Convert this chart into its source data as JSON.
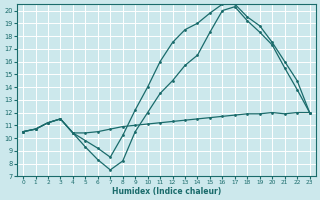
{
  "xlabel": "Humidex (Indice chaleur)",
  "background_color": "#cce8ec",
  "grid_color": "#ffffff",
  "line_color": "#1a6b6b",
  "xlim": [
    -0.5,
    23.5
  ],
  "ylim": [
    7,
    20.5
  ],
  "yticks": [
    7,
    8,
    9,
    10,
    11,
    12,
    13,
    14,
    15,
    16,
    17,
    18,
    19,
    20
  ],
  "xticks": [
    0,
    1,
    2,
    3,
    4,
    5,
    6,
    7,
    8,
    9,
    10,
    11,
    12,
    13,
    14,
    15,
    16,
    17,
    18,
    19,
    20,
    21,
    22,
    23
  ],
  "line1_x": [
    0,
    1,
    2,
    3,
    4,
    5,
    6,
    7,
    8,
    9,
    10,
    11,
    12,
    13,
    14,
    15,
    16,
    17,
    18,
    19,
    20,
    21,
    22,
    23
  ],
  "line1_y": [
    10.5,
    10.7,
    11.2,
    11.5,
    10.4,
    10.4,
    10.5,
    10.7,
    10.9,
    11.0,
    11.1,
    11.2,
    11.3,
    11.4,
    11.5,
    11.6,
    11.7,
    11.8,
    11.9,
    11.9,
    12.0,
    11.9,
    12.0,
    12.0
  ],
  "line2_x": [
    0,
    1,
    2,
    3,
    4,
    5,
    6,
    7,
    8,
    9,
    10,
    11,
    12,
    13,
    14,
    15,
    16,
    17,
    18,
    19,
    20,
    21,
    22,
    23
  ],
  "line2_y": [
    10.5,
    10.7,
    11.2,
    11.5,
    10.4,
    9.3,
    8.3,
    7.5,
    8.2,
    10.5,
    12.0,
    13.5,
    14.5,
    15.7,
    16.5,
    18.3,
    20.0,
    20.3,
    19.2,
    18.3,
    17.3,
    15.5,
    13.8,
    12.0
  ],
  "line3_x": [
    0,
    1,
    2,
    3,
    4,
    5,
    6,
    7,
    8,
    9,
    10,
    11,
    12,
    13,
    14,
    15,
    16,
    17,
    18,
    19,
    20,
    21,
    22,
    23
  ],
  "line3_y": [
    10.5,
    10.7,
    11.2,
    11.5,
    10.4,
    9.8,
    9.2,
    8.5,
    10.2,
    12.2,
    14.0,
    16.0,
    17.5,
    18.5,
    19.0,
    19.8,
    20.5,
    20.5,
    19.5,
    18.8,
    17.5,
    16.0,
    14.5,
    12.0
  ]
}
